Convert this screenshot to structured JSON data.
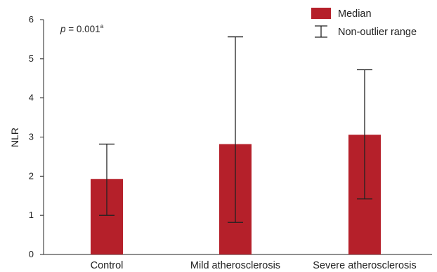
{
  "chart_data": {
    "type": "bar",
    "categories": [
      "Control",
      "Mild atherosclerosis",
      "Severe atherosclerosis"
    ],
    "values": [
      1.93,
      2.82,
      3.06
    ],
    "range_low": [
      1.0,
      0.82,
      1.42
    ],
    "range_high": [
      2.82,
      5.56,
      4.72
    ],
    "ylabel": "NLR",
    "xlabel": "",
    "ylim": [
      0,
      6
    ],
    "yticks": [
      "0",
      "1",
      "2",
      "3",
      "4",
      "5",
      "6"
    ],
    "bar_color": "#b5202a",
    "grid": false,
    "legend": {
      "position": "top-right",
      "bar_label": "Median",
      "range_label": "Non-outlier range"
    },
    "annotation": {
      "p_symbol": "p",
      "p_text": " = 0.001",
      "p_sup": "a"
    }
  }
}
